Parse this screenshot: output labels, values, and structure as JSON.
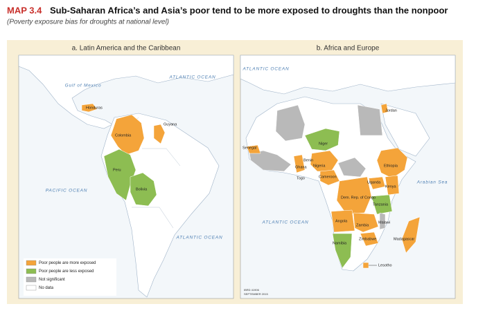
{
  "header": {
    "label": "MAP 3.4",
    "title": "Sub-Saharan Africa’s and Asia’s poor tend to be more exposed to droughts than the nonpoor",
    "subtitle": "(Poverty exposure bias for droughts at national level)"
  },
  "panels": [
    {
      "title": "a. Latin America and the Caribbean",
      "oceans": [
        "Gulf of Mexico",
        "ATLANTIC OCEAN",
        "PACIFIC OCEAN",
        "ATLANTIC OCEAN"
      ],
      "countries": [
        "Honduras",
        "Guyana",
        "Colombia",
        "Peru",
        "Bolivia"
      ]
    },
    {
      "title": "b. Africa and Europe",
      "oceans": [
        "ATLANTIC OCEAN",
        "Arabian Sea",
        "ATLANTIC OCEAN"
      ],
      "countries": [
        "Jordan",
        "Senegal",
        "Niger",
        "Benin",
        "Ghana",
        "Nigeria",
        "Togo",
        "Cameroon",
        "Ethiopia",
        "Uganda",
        "Kenya",
        "Dem. Rep. of Congo",
        "Tanzania",
        "Angola",
        "Zambia",
        "Malawi",
        "Zimbabwe",
        "Madagascar",
        "Namibia",
        "Lesotho"
      ]
    }
  ],
  "legend": {
    "items": [
      {
        "label": "Poor people are more exposed",
        "color": "#f4a43a"
      },
      {
        "label": "Poor people are less exposed",
        "color": "#8dbd52"
      },
      {
        "label": "Not significant",
        "color": "#b9b9b9"
      },
      {
        "label": "No data",
        "color": "#ffffff"
      }
    ]
  },
  "credits": [
    "IBRD 41906",
    "SEPTEMBER 2015"
  ]
}
